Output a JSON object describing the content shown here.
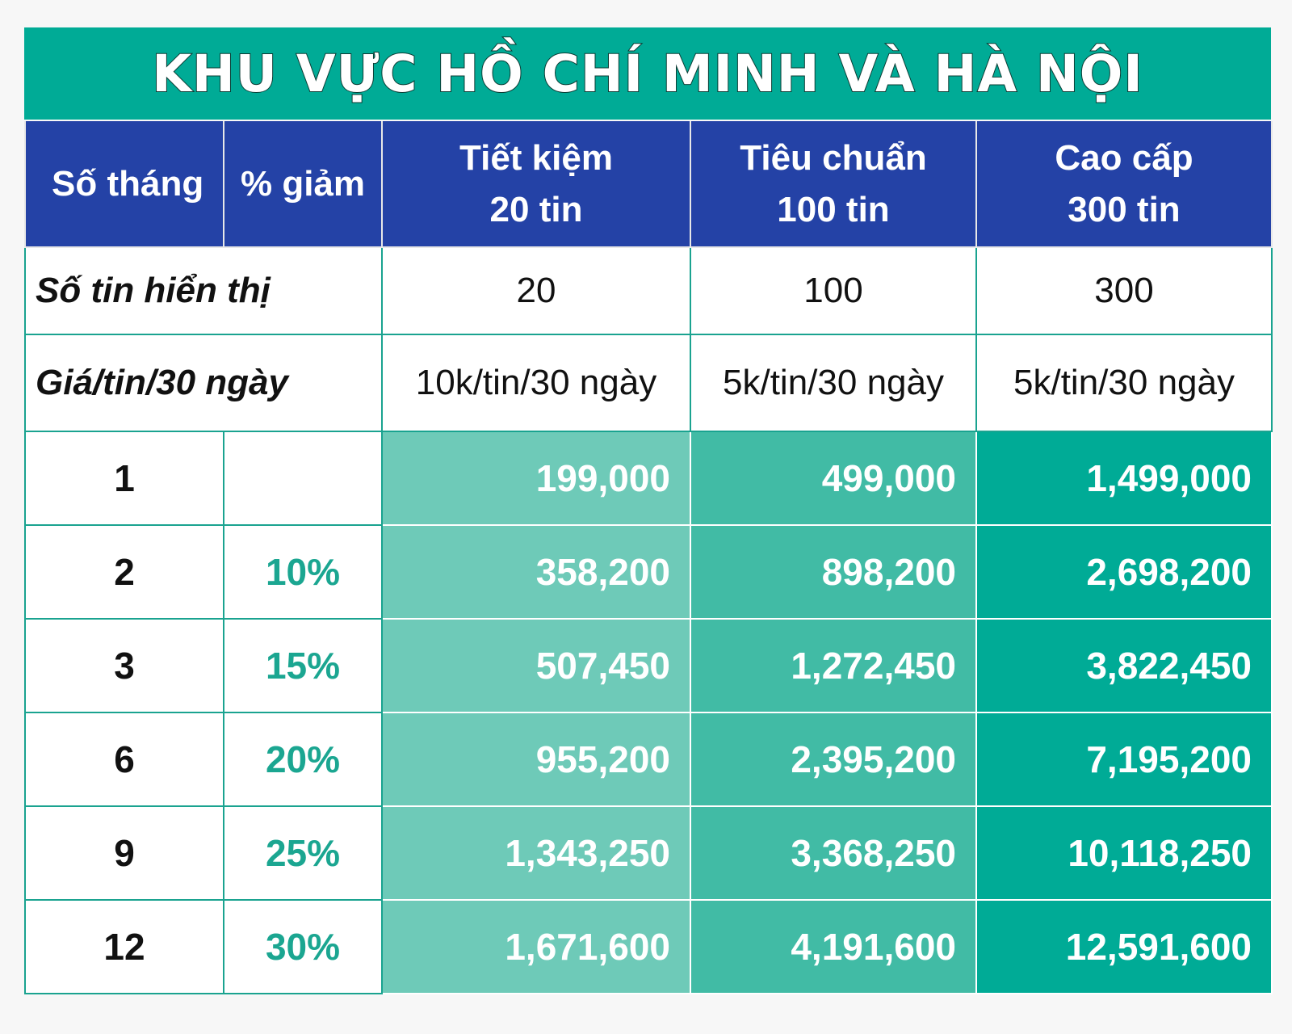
{
  "title": "KHU VỰC HỒ CHÍ MINH VÀ HÀ NỘI",
  "header": {
    "months": "Số tháng",
    "discount": "% giảm",
    "plans": [
      {
        "name": "Tiết kiệm",
        "count": "20 tin"
      },
      {
        "name": "Tiêu chuẩn",
        "count": "100 tin"
      },
      {
        "name": "Cao cấp",
        "count": "300 tin"
      }
    ]
  },
  "info_rows": [
    {
      "label": "Số tin hiển thị",
      "values": [
        "20",
        "100",
        "300"
      ]
    },
    {
      "label": "Giá/tin/30 ngày",
      "values": [
        "10k/tin/30 ngày",
        "5k/tin/30 ngày",
        "5k/tin/30 ngày"
      ]
    }
  ],
  "rows": [
    {
      "months": "1",
      "discount": "",
      "prices": [
        "199,000",
        "499,000",
        "1,499,000"
      ]
    },
    {
      "months": "2",
      "discount": "10%",
      "prices": [
        "358,200",
        "898,200",
        "2,698,200"
      ]
    },
    {
      "months": "3",
      "discount": "15%",
      "prices": [
        "507,450",
        "1,272,450",
        "3,822,450"
      ]
    },
    {
      "months": "6",
      "discount": "20%",
      "prices": [
        "955,200",
        "2,395,200",
        "7,195,200"
      ]
    },
    {
      "months": "9",
      "discount": "25%",
      "prices": [
        "1,343,250",
        "3,368,250",
        "10,118,250"
      ]
    },
    {
      "months": "12",
      "discount": "30%",
      "prices": [
        "1,671,600",
        "4,191,600",
        "12,591,600"
      ]
    }
  ],
  "colors": {
    "title_bg": "#00ab96",
    "header_bg": "#2442a6",
    "plan1_price_bg": "#6ecab8",
    "plan2_price_bg": "#41bba5",
    "plan3_price_bg": "#00ab96",
    "discount_text": "#1ba691"
  }
}
